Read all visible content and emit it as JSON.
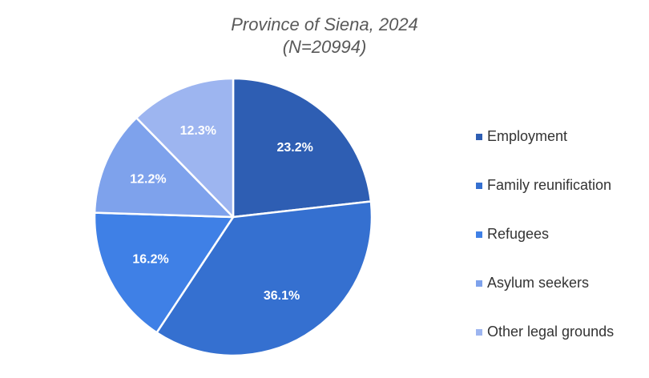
{
  "chart_data": {
    "type": "pie",
    "title": "Province of Siena, 2024",
    "subtitle": "(N=20994)",
    "start_angle_deg": 0,
    "direction": "clockwise",
    "legend_position": "right",
    "slices": [
      {
        "name": "Employment",
        "value": 23.2,
        "label": "23.2%",
        "color": "#2e5eb3"
      },
      {
        "name": "Family reunification",
        "value": 36.1,
        "label": "36.1%",
        "color": "#3570d0"
      },
      {
        "name": "Refugees",
        "value": 16.2,
        "label": "16.2%",
        "color": "#3f80e6"
      },
      {
        "name": "Asylum seekers",
        "value": 12.2,
        "label": "12.2%",
        "color": "#7ea2ec"
      },
      {
        "name": "Other legal grounds",
        "value": 12.3,
        "label": "12.3%",
        "color": "#9db5f0"
      }
    ]
  }
}
